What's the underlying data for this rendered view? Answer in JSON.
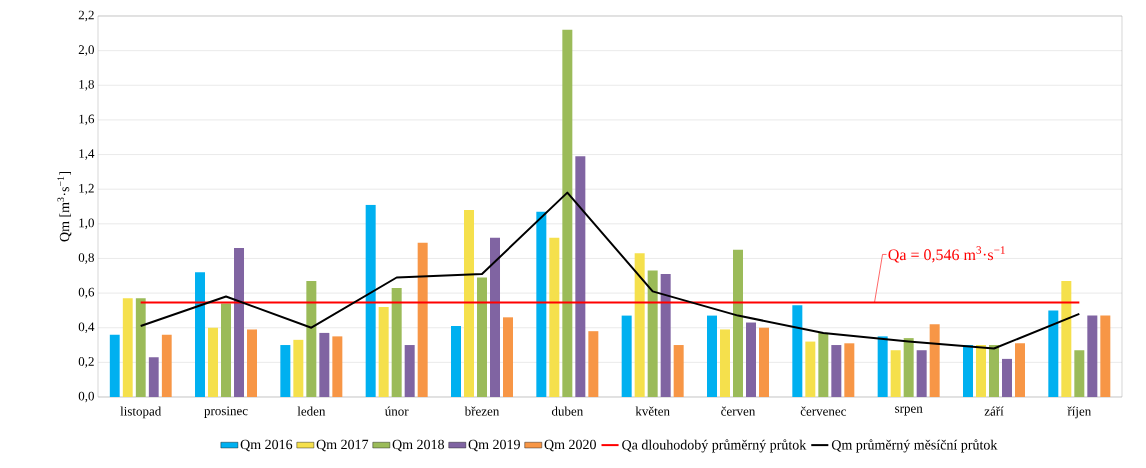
{
  "chart_data": {
    "type": "bar",
    "ylabel": "Qm [m$^{3}$·s$^{−1}$]",
    "categories": [
      "listopad",
      "prosinec",
      "leden",
      "únor",
      "březen",
      "duben",
      "květen",
      "červen",
      "červenec",
      "srpen",
      "září",
      "říjen"
    ],
    "series": [
      {
        "name": "Qm 2016",
        "color": "#00b0f0",
        "values": [
          0.36,
          0.72,
          0.3,
          1.11,
          0.41,
          1.07,
          0.47,
          0.47,
          0.53,
          0.35,
          0.3,
          0.5
        ]
      },
      {
        "name": "Qm 2017",
        "color": "#f5e04c",
        "values": [
          0.57,
          0.4,
          0.33,
          0.52,
          1.08,
          0.92,
          0.83,
          0.39,
          0.32,
          0.27,
          0.3,
          0.67
        ]
      },
      {
        "name": "Qm 2018",
        "color": "#9bbb59",
        "values": [
          0.57,
          0.54,
          0.67,
          0.63,
          0.69,
          2.12,
          0.73,
          0.85,
          0.37,
          0.34,
          0.3,
          0.27
        ]
      },
      {
        "name": "Qm 2019",
        "color": "#8064a2",
        "values": [
          0.23,
          0.86,
          0.37,
          0.3,
          0.92,
          1.39,
          0.71,
          0.43,
          0.3,
          0.27,
          0.22,
          0.47
        ]
      },
      {
        "name": "Qm 2020",
        "color": "#f79646",
        "values": [
          0.36,
          0.39,
          0.35,
          0.89,
          0.46,
          0.38,
          0.3,
          0.4,
          0.31,
          0.42,
          0.31,
          0.47
        ]
      },
      {
        "name": "Qm průměrný měsíční průtok",
        "type": "line",
        "color": "#000000",
        "values": [
          0.41,
          0.58,
          0.4,
          0.69,
          0.71,
          1.18,
          0.61,
          0.47,
          0.37,
          0.32,
          0.28,
          0.48
        ]
      }
    ],
    "ref_lines": [
      {
        "axis": "y",
        "value": 0.546,
        "label": "Qa dlouhodobý průměrný průtok",
        "color": "#ff0000"
      }
    ],
    "annotations": [
      {
        "text": "Qa = 0,546 m$^{3}$·s$^{−1}$",
        "y": 0.546
      }
    ],
    "ylim": [
      0,
      2.2
    ],
    "yticks": [
      {
        "value": 0,
        "label": "0,0"
      },
      {
        "value": 0.2,
        "label": "0,2"
      },
      {
        "value": 0.4,
        "label": "0,4"
      },
      {
        "value": 0.6,
        "label": "0,6"
      },
      {
        "value": 0.8,
        "label": "0,8"
      },
      {
        "value": 1.0,
        "label": "1,0"
      },
      {
        "value": 1.2,
        "label": "1,2"
      },
      {
        "value": 1.4,
        "label": "1,4"
      },
      {
        "value": 1.6,
        "label": "1,6"
      },
      {
        "value": 1.8,
        "label": "1,8"
      },
      {
        "value": 2.0,
        "label": "2,0"
      },
      {
        "value": 2.2,
        "label": "2,2"
      }
    ],
    "grid": "y",
    "legend": "bottom"
  }
}
